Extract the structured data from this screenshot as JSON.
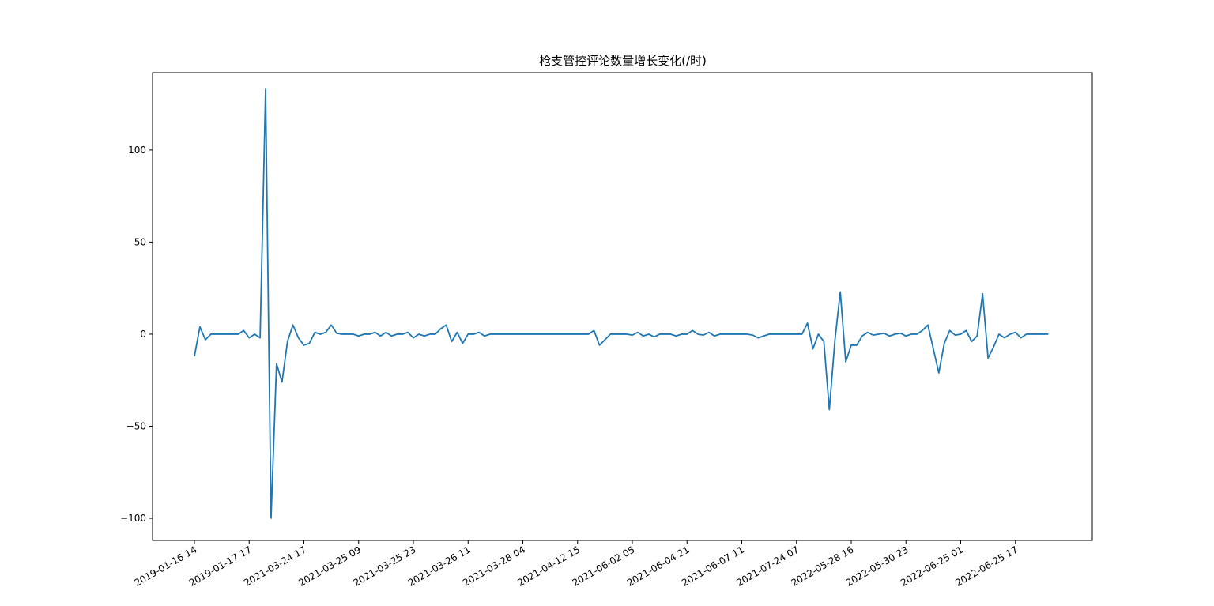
{
  "chart_data": {
    "type": "line",
    "title": "枪支管控评论数量增长变化(/时)",
    "xlabel": "",
    "ylabel": "",
    "ylim": [
      -112,
      142
    ],
    "yticks": [
      100,
      50,
      0,
      -50,
      -100
    ],
    "x_tick_labels": [
      "2019-01-16 14",
      "2019-01-17 17",
      "2021-03-24 17",
      "2021-03-25 09",
      "2021-03-25 23",
      "2021-03-26 11",
      "2021-03-28 04",
      "2021-04-12 15",
      "2021-06-02 05",
      "2021-06-04 21",
      "2021-06-07 11",
      "2021-07-24 07",
      "2022-05-28 16",
      "2022-05-30 23",
      "2022-06-25 01",
      "2022-06-25 17"
    ],
    "x_tick_positions": [
      0,
      10,
      20,
      30,
      40,
      50,
      60,
      70,
      80,
      90,
      100,
      110,
      120,
      130,
      140,
      150
    ],
    "line_color": "#1f77b4",
    "grid": false,
    "series": [
      {
        "values": [
          -12,
          4,
          -3,
          0,
          0,
          0,
          0,
          0,
          0,
          2,
          -2,
          0,
          -2,
          133,
          -100,
          -16,
          -26,
          -4,
          5,
          -2,
          -6,
          -5,
          1,
          0,
          1,
          5,
          0.5,
          0,
          0,
          0,
          -1,
          0,
          0,
          1,
          -1,
          1,
          -1,
          0,
          0,
          1,
          -2,
          0,
          -1,
          0,
          0,
          3,
          5,
          -4,
          1,
          -5,
          0,
          0,
          1,
          -1,
          0,
          0,
          0,
          0,
          0,
          0,
          0,
          0,
          0,
          0,
          0,
          0,
          0,
          0,
          0,
          0,
          0,
          0,
          0,
          2,
          -6,
          -3,
          0,
          0,
          0,
          0,
          -0.5,
          1,
          -1,
          0,
          -1.5,
          0,
          0,
          0,
          -1,
          0,
          0,
          2,
          0,
          -0.5,
          1,
          -1,
          0,
          0,
          0,
          0,
          0,
          0,
          -0.5,
          -2,
          -1,
          0,
          0,
          0,
          0,
          0,
          0,
          0,
          6,
          -8,
          0,
          -4,
          -41,
          -4,
          23,
          -15,
          -6,
          -6,
          -1,
          1,
          -0.5,
          0,
          0.5,
          -1,
          0,
          0.5,
          -1,
          0,
          0,
          2,
          5,
          -8,
          -21,
          -5,
          2,
          -0.5,
          0,
          2,
          -4,
          -1,
          22,
          -13,
          -7,
          0,
          -2,
          0,
          1,
          -2,
          0,
          0,
          0,
          0,
          0
        ]
      }
    ]
  }
}
